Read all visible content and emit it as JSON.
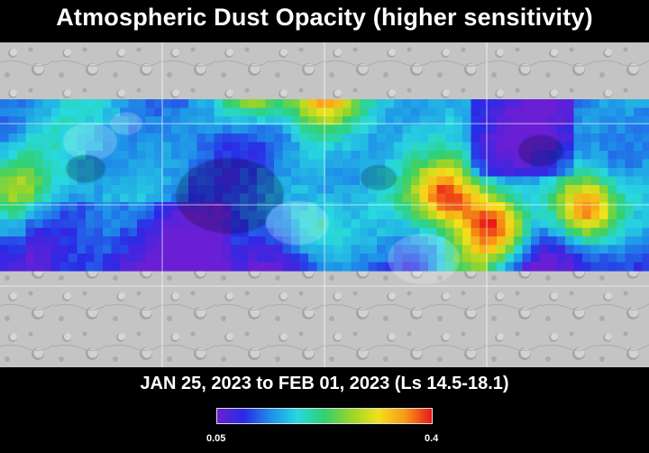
{
  "title": "Atmospheric Dust Opacity (higher sensitivity)",
  "date_range": "JAN 25, 2023 to FEB 01, 2023 (Ls 14.5-18.1)",
  "colorbar": {
    "min_label": "0.05",
    "max_label": "0.4",
    "min": 0.05,
    "max": 0.4,
    "colors": [
      "#6a1fd4",
      "#2a2ae6",
      "#1f8fe8",
      "#28d8e0",
      "#30d070",
      "#9ad42a",
      "#f2e21a",
      "#f79a18",
      "#e81818"
    ]
  },
  "map": {
    "basemap": "grayscale-shaded-relief",
    "grid_lines": true,
    "dust_region_hotspots": [
      {
        "lon": 281,
        "lat": 48,
        "value": 0.33
      },
      {
        "lon": 357,
        "lat": 55,
        "value": 0.34
      },
      {
        "lon": 497,
        "lat": 170,
        "value": 0.36
      },
      {
        "lon": 548,
        "lat": 205,
        "value": 0.37
      },
      {
        "lon": 650,
        "lat": 185,
        "value": 0.4
      },
      {
        "lon": 15,
        "lat": 160,
        "value": 0.23
      },
      {
        "lon": 350,
        "lat": 210,
        "value": 0.22
      },
      {
        "lon": 520,
        "lat": 250,
        "value": 0.24
      }
    ]
  }
}
